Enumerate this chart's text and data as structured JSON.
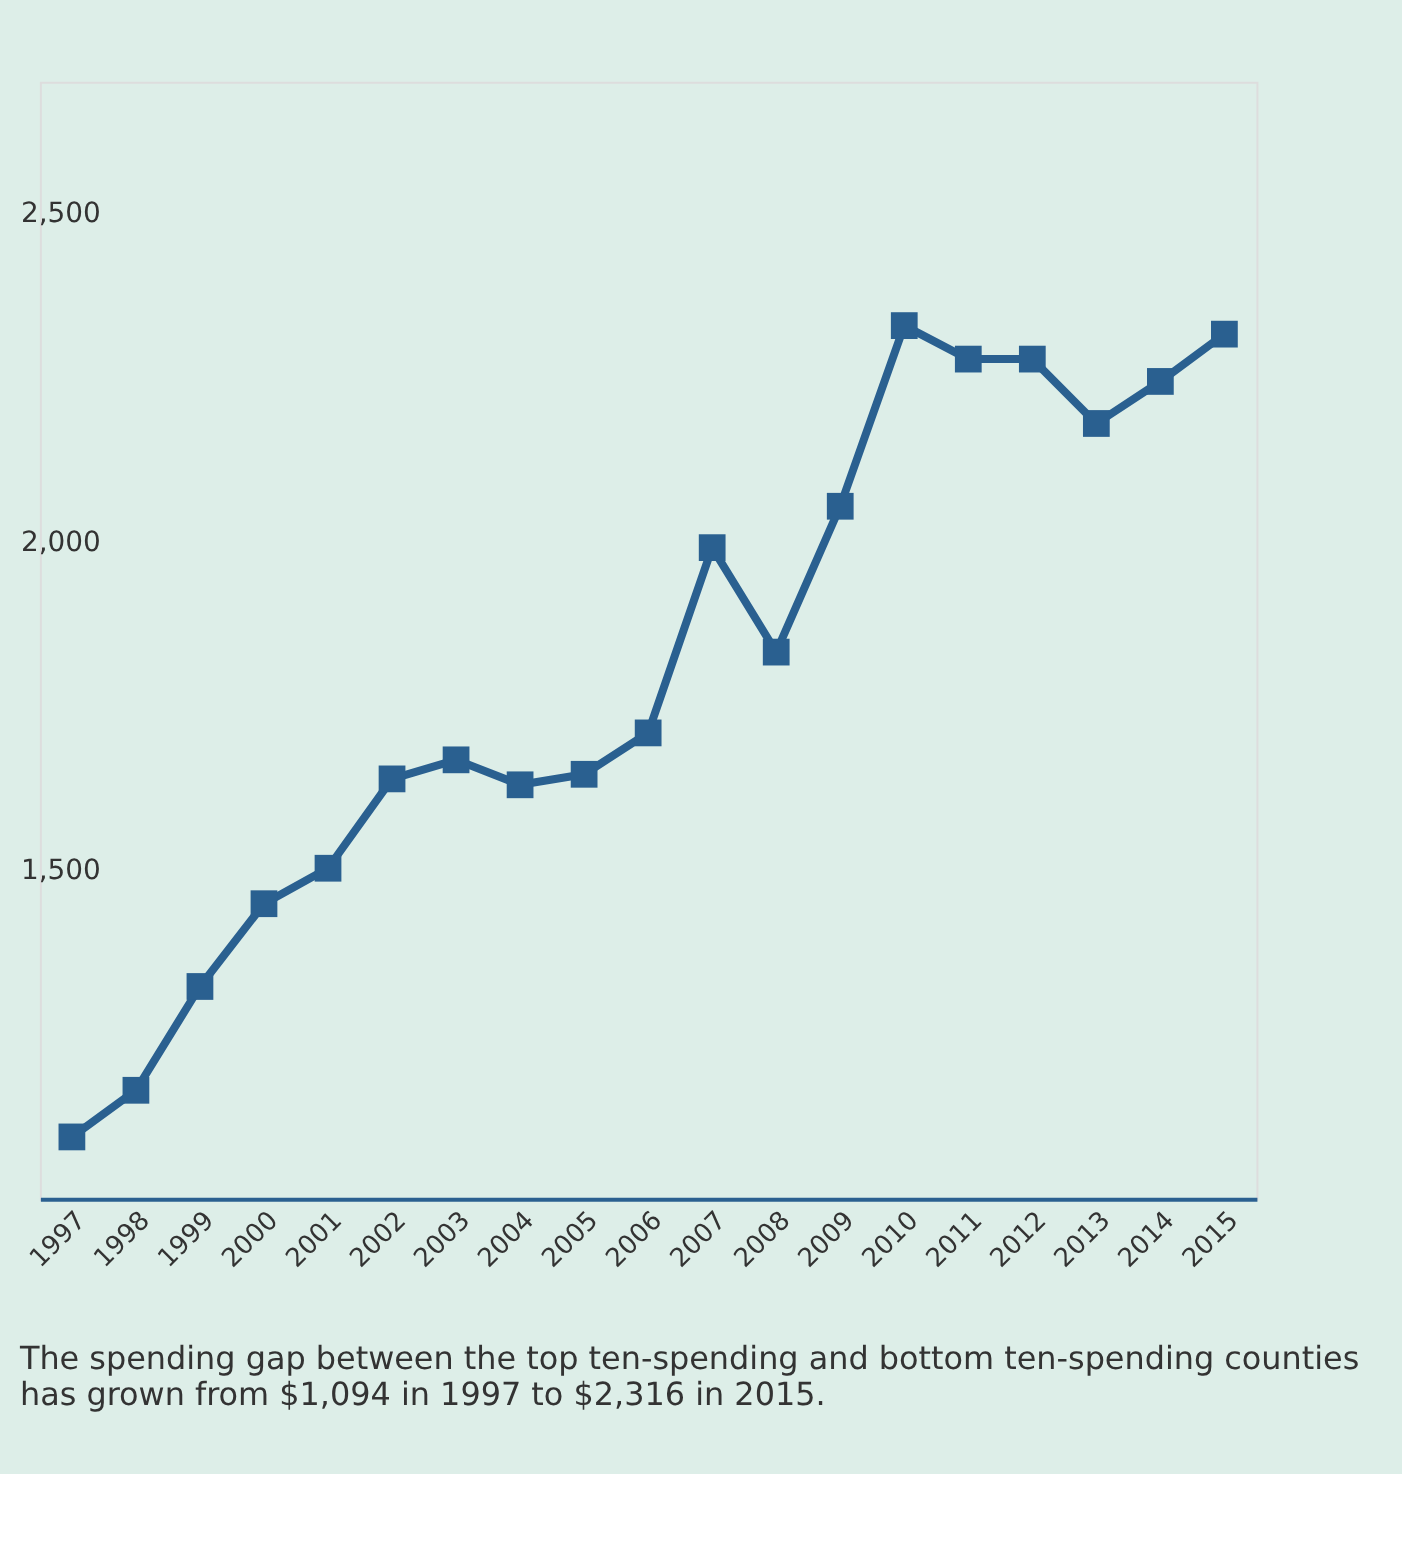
{
  "chart_data": {
    "type": "line",
    "categories": [
      "1997",
      "1998",
      "1999",
      "2000",
      "2001",
      "2002",
      "2003",
      "2004",
      "2005",
      "2006",
      "2007",
      "2008",
      "2009",
      "2010",
      "2011",
      "2012",
      "2013",
      "2014",
      "2015"
    ],
    "series": [
      {
        "color": "#2a6090",
        "values": [
          1094,
          1165,
          1323,
          1449,
          1503,
          1639,
          1668,
          1630,
          1646,
          1709,
          1991,
          1832,
          2054,
          2329,
          2278,
          2278,
          2180,
          2244,
          2316
        ]
      }
    ],
    "ylim": [
      1000,
      2700
    ],
    "yticks": [
      {
        "value": 1500,
        "label": "1,500"
      },
      {
        "value": 2000,
        "label": "2,000"
      },
      {
        "value": 2500,
        "label": "2,500"
      }
    ],
    "grid": false,
    "marker": "square",
    "line_style": "solid",
    "annotations": [
      "The spending gap between the top ten-spending and bottom ten-spending counties has grown from $1,094 in 1997 to $2,316 in 2015."
    ]
  }
}
